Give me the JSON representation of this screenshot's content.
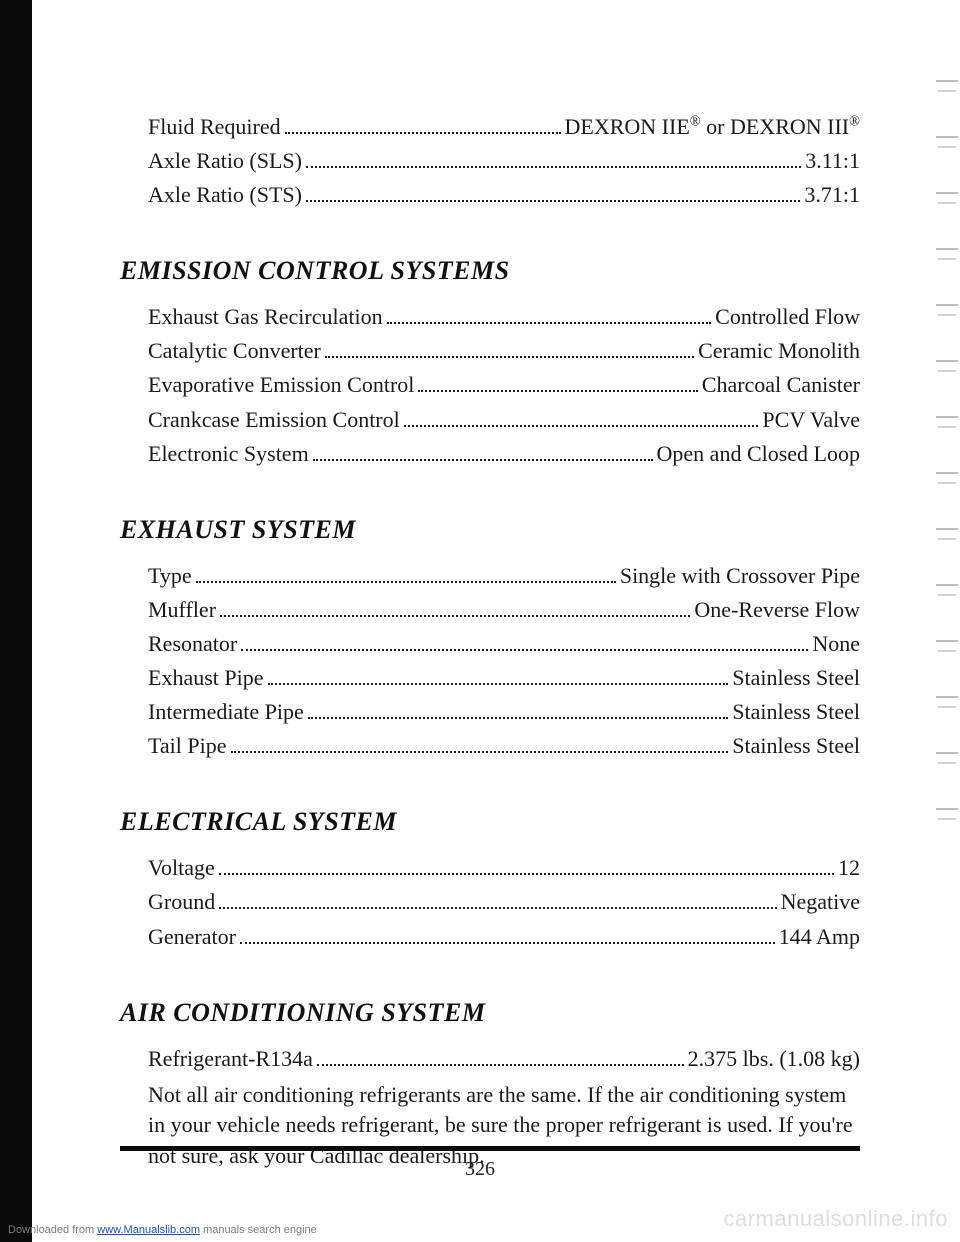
{
  "top_block": {
    "rows": [
      {
        "label": "Fluid Required",
        "value_html": "DEXRON IIE<span class='sup'>®</span> or DEXRON III<span class='sup'>®</span>"
      },
      {
        "label": "Axle Ratio (SLS)",
        "value": "3.11:1"
      },
      {
        "label": "Axle Ratio (STS)",
        "value": "3.71:1"
      }
    ]
  },
  "sections": [
    {
      "heading": "EMISSION CONTROL SYSTEMS",
      "rows": [
        {
          "label": "Exhaust Gas Recirculation",
          "value": "Controlled Flow"
        },
        {
          "label": "Catalytic Converter",
          "value": "Ceramic Monolith"
        },
        {
          "label": "Evaporative Emission Control",
          "value": "Charcoal Canister"
        },
        {
          "label": "Crankcase Emission Control",
          "value": "PCV Valve"
        },
        {
          "label": "Electronic System",
          "value": "Open and Closed Loop"
        }
      ]
    },
    {
      "heading": "EXHAUST SYSTEM",
      "rows": [
        {
          "label": "Type",
          "value": "Single with Crossover Pipe"
        },
        {
          "label": "Muffler",
          "value": "One-Reverse Flow"
        },
        {
          "label": "Resonator",
          "value": "None"
        },
        {
          "label": "Exhaust Pipe",
          "value": "Stainless Steel"
        },
        {
          "label": "Intermediate Pipe",
          "value": "Stainless Steel"
        },
        {
          "label": "Tail Pipe",
          "value": "Stainless Steel"
        }
      ]
    },
    {
      "heading": "ELECTRICAL SYSTEM",
      "rows": [
        {
          "label": "Voltage",
          "value": "12"
        },
        {
          "label": "Ground",
          "value": "Negative"
        },
        {
          "label": "Generator",
          "value": "144 Amp"
        }
      ]
    },
    {
      "heading": "AIR CONDITIONING SYSTEM",
      "rows": [
        {
          "label": "Refrigerant-R134a",
          "value": "2.375 lbs. (1.08 kg)"
        }
      ],
      "note": "Not all air conditioning refrigerants are the same. If the air conditioning system in your vehicle needs refrigerant, be sure the proper refrigerant is used. If you're not sure, ask your Cadillac dealership."
    }
  ],
  "page_number": "326",
  "footer_left_prefix": "Downloaded from ",
  "footer_left_link": "www.Manualslib.com",
  "footer_left_suffix": " manuals search engine",
  "footer_right": "carmanualsonline.info",
  "colors": {
    "text": "#1a1a1a",
    "bar": "#0a0a0a",
    "watermark": "rgba(120,120,120,0.25)"
  }
}
